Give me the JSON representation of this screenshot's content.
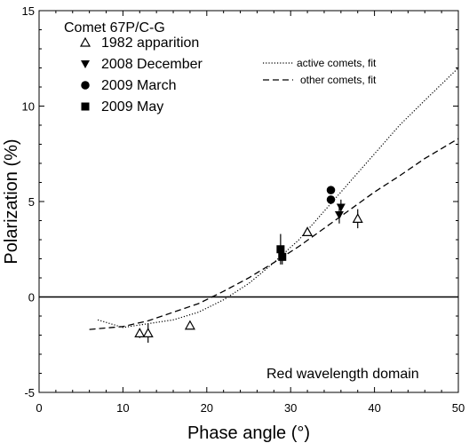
{
  "chart_data": {
    "type": "scatter",
    "title": "Comet 67P/C-G",
    "xlabel": "Phase angle (°)",
    "ylabel": "Polarization (%)",
    "xlim": [
      0,
      50
    ],
    "ylim": [
      -5,
      15
    ],
    "xticks": [
      0,
      10,
      20,
      30,
      40,
      50
    ],
    "yticks": [
      -5,
      0,
      5,
      10,
      15
    ],
    "grid": false,
    "legend_position": "top-left",
    "annotation": "Red wavelength domain",
    "series": [
      {
        "name": "1982 apparition",
        "marker": "triangle-up-open",
        "points": [
          {
            "x": 12.0,
            "y": -1.9,
            "err": 0.25
          },
          {
            "x": 13.0,
            "y": -1.9,
            "err": 0.5
          },
          {
            "x": 18.0,
            "y": -1.5,
            "err": 0.1
          },
          {
            "x": 32.0,
            "y": 3.4,
            "err": 0.1
          },
          {
            "x": 38.0,
            "y": 4.1,
            "err": 0.5
          }
        ]
      },
      {
        "name": "2008 December",
        "marker": "triangle-down-filled",
        "points": [
          {
            "x": 35.8,
            "y": 4.3,
            "err": 0.45
          },
          {
            "x": 36.0,
            "y": 4.7,
            "err": 0.4
          }
        ]
      },
      {
        "name": "2009 March",
        "marker": "circle-filled",
        "points": [
          {
            "x": 34.8,
            "y": 5.6,
            "err": 0.2
          },
          {
            "x": 34.8,
            "y": 5.1,
            "err": 0.2
          }
        ]
      },
      {
        "name": "2009 May",
        "marker": "square-filled",
        "points": [
          {
            "x": 28.8,
            "y": 2.5,
            "err": 0.8
          },
          {
            "x": 29.0,
            "y": 2.1,
            "err": 0.4
          }
        ]
      }
    ],
    "fits": [
      {
        "name": "active comets, fit",
        "style": "dotted",
        "points": [
          [
            7,
            -1.2
          ],
          [
            10,
            -1.6
          ],
          [
            13,
            -1.4
          ],
          [
            16,
            -1.2
          ],
          [
            19,
            -0.8
          ],
          [
            22,
            -0.15
          ],
          [
            25,
            0.7
          ],
          [
            28,
            1.8
          ],
          [
            31,
            3.0
          ],
          [
            34,
            4.5
          ],
          [
            37,
            6.0
          ],
          [
            40,
            7.5
          ],
          [
            43,
            9.0
          ],
          [
            46,
            10.3
          ],
          [
            50,
            12.0
          ]
        ]
      },
      {
        "name": "other comets, fit",
        "style": "dashed",
        "points": [
          [
            6,
            -1.7
          ],
          [
            10,
            -1.55
          ],
          [
            13,
            -1.25
          ],
          [
            16,
            -0.8
          ],
          [
            19,
            -0.35
          ],
          [
            22,
            0.3
          ],
          [
            25,
            1.0
          ],
          [
            28,
            1.8
          ],
          [
            31,
            2.65
          ],
          [
            34,
            3.6
          ],
          [
            37,
            4.55
          ],
          [
            40,
            5.5
          ],
          [
            43,
            6.35
          ],
          [
            46,
            7.25
          ],
          [
            50,
            8.3
          ]
        ]
      }
    ]
  }
}
